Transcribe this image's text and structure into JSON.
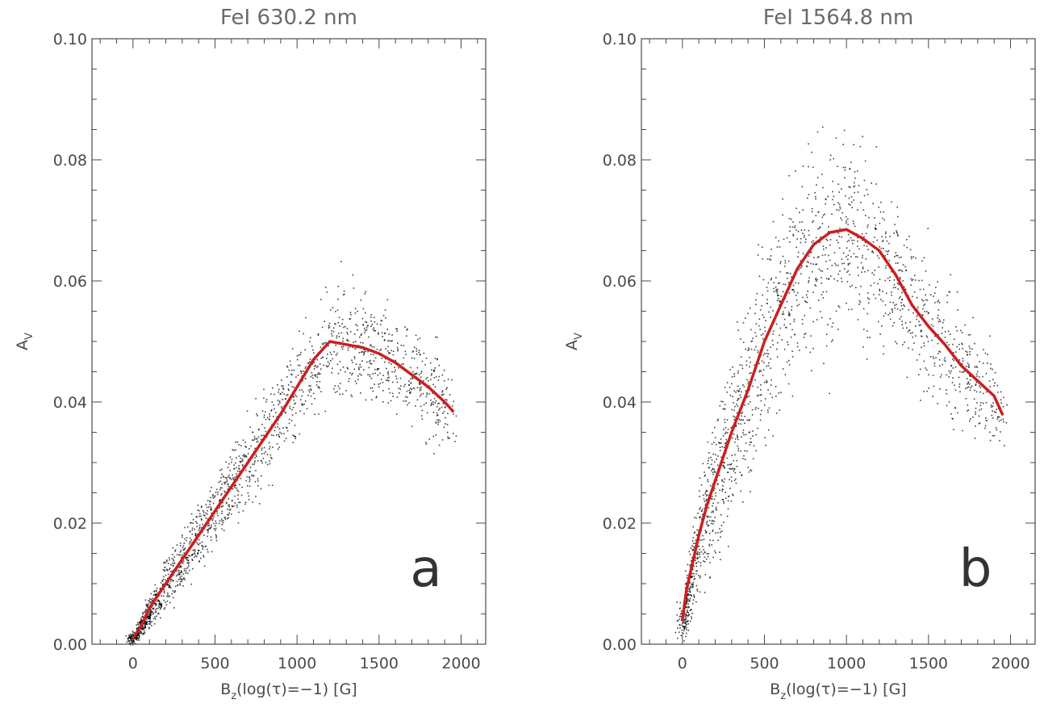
{
  "chart_data": [
    {
      "type": "scatter",
      "title": "FeI 630.2 nm",
      "panel_label": "a",
      "xlabel_main": "B",
      "xlabel_sub": "z",
      "xlabel_rest": "(log(τ)=−1) [G]",
      "ylabel": "A",
      "ylabel_sub": "V",
      "xlim": [
        -250,
        2150
      ],
      "ylim": [
        0,
        0.1
      ],
      "xticks": [
        0,
        500,
        1000,
        1500,
        2000
      ],
      "xtick_labels": [
        "0",
        "500",
        "1000",
        "1500",
        "2000"
      ],
      "yticks": [
        0,
        0.02,
        0.04,
        0.06,
        0.08,
        0.1
      ],
      "ytick_labels": [
        "0.00",
        "0.02",
        "0.04",
        "0.06",
        "0.08",
        "0.10"
      ],
      "grid": false,
      "colors": {
        "points": "#000000",
        "trend": "#cc1f1f"
      },
      "series": [
        {
          "kind": "line",
          "x": [
            0,
            50,
            100,
            200,
            300,
            400,
            500,
            600,
            700,
            800,
            900,
            1000,
            1100,
            1200,
            1300,
            1400,
            1500,
            1600,
            1700,
            1800,
            1900,
            1950
          ],
          "y": [
            0.001,
            0.003,
            0.006,
            0.01,
            0.014,
            0.018,
            0.022,
            0.026,
            0.03,
            0.034,
            0.038,
            0.0425,
            0.047,
            0.05,
            0.0495,
            0.049,
            0.048,
            0.0465,
            0.0445,
            0.0425,
            0.04,
            0.0385
          ]
        },
        {
          "kind": "scatter-cloud",
          "ridge_x": [
            0,
            200,
            400,
            600,
            800,
            1000,
            1200,
            1400,
            1600,
            1800,
            1950
          ],
          "ridge_y": [
            0.001,
            0.01,
            0.018,
            0.026,
            0.034,
            0.0425,
            0.05,
            0.049,
            0.0465,
            0.0425,
            0.0385
          ],
          "spread_y": [
            0.001,
            0.004,
            0.005,
            0.006,
            0.007,
            0.008,
            0.009,
            0.009,
            0.008,
            0.008,
            0.006
          ]
        }
      ]
    },
    {
      "type": "scatter",
      "title": "FeI 1564.8 nm",
      "panel_label": "b",
      "xlabel_main": "B",
      "xlabel_sub": "z",
      "xlabel_rest": "(log(τ)=−1) [G]",
      "ylabel": "A",
      "ylabel_sub": "V",
      "xlim": [
        -250,
        2150
      ],
      "ylim": [
        0,
        0.1
      ],
      "xticks": [
        0,
        500,
        1000,
        1500,
        2000
      ],
      "xtick_labels": [
        "0",
        "500",
        "1000",
        "1500",
        "2000"
      ],
      "yticks": [
        0,
        0.02,
        0.04,
        0.06,
        0.08,
        0.1
      ],
      "ytick_labels": [
        "0.00",
        "0.02",
        "0.04",
        "0.06",
        "0.08",
        "0.10"
      ],
      "grid": false,
      "colors": {
        "points": "#000000",
        "trend": "#cc1f1f"
      },
      "series": [
        {
          "kind": "line",
          "x": [
            0,
            25,
            50,
            100,
            150,
            200,
            300,
            400,
            500,
            600,
            700,
            800,
            900,
            1000,
            1100,
            1200,
            1300,
            1400,
            1500,
            1600,
            1700,
            1800,
            1900,
            1950
          ],
          "y": [
            0.004,
            0.009,
            0.012,
            0.018,
            0.023,
            0.027,
            0.035,
            0.042,
            0.05,
            0.056,
            0.062,
            0.066,
            0.068,
            0.0685,
            0.067,
            0.065,
            0.061,
            0.056,
            0.0525,
            0.0495,
            0.046,
            0.0435,
            0.041,
            0.038
          ]
        },
        {
          "kind": "scatter-cloud",
          "ridge_x": [
            0,
            100,
            200,
            400,
            600,
            800,
            1000,
            1200,
            1400,
            1600,
            1800,
            1950
          ],
          "ridge_y": [
            0.004,
            0.018,
            0.027,
            0.042,
            0.056,
            0.066,
            0.0685,
            0.065,
            0.056,
            0.0495,
            0.0435,
            0.038
          ],
          "spread_y": [
            0.003,
            0.009,
            0.012,
            0.015,
            0.016,
            0.016,
            0.015,
            0.013,
            0.011,
            0.01,
            0.008,
            0.006
          ]
        }
      ]
    }
  ]
}
